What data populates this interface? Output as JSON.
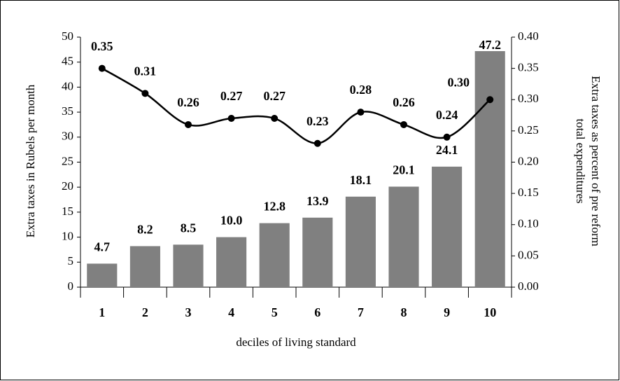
{
  "chart_data": {
    "type": "bar_line",
    "categories": [
      "1",
      "2",
      "3",
      "4",
      "5",
      "6",
      "7",
      "8",
      "9",
      "10"
    ],
    "series": [
      {
        "type": "bar",
        "color": "#808080",
        "values": [
          4.7,
          8.2,
          8.5,
          10.0,
          12.8,
          13.9,
          18.1,
          20.1,
          24.1,
          47.2
        ],
        "value_labels": [
          "4.7",
          "8.2",
          "8.5",
          "10.0",
          "12.8",
          "13.9",
          "18.1",
          "20.1",
          "24.1",
          "47.2"
        ]
      },
      {
        "type": "line",
        "axis": "y2",
        "color": "#000000",
        "values": [
          0.35,
          0.31,
          0.26,
          0.27,
          0.27,
          0.23,
          0.28,
          0.26,
          0.24,
          0.3
        ],
        "value_labels": [
          "0.35",
          "0.31",
          "0.26",
          "0.27",
          "0.27",
          "0.23",
          "0.28",
          "0.26",
          "0.24",
          "0.30"
        ]
      }
    ],
    "xlabel": "deciles of living standard",
    "ylabel": "Extra taxes in Rubels per month",
    "y2label": [
      "Extra taxes as percent of pre reform",
      "total expenditures"
    ],
    "ylim": [
      0,
      50
    ],
    "yticks": [
      0,
      5,
      10,
      15,
      20,
      25,
      30,
      35,
      40,
      45,
      50
    ],
    "y2lim": [
      0,
      0.4
    ],
    "y2ticks": [
      {
        "value": 0,
        "label": "0.00"
      },
      {
        "value": 0.05,
        "label": "0.05"
      },
      {
        "value": 0.1,
        "label": "0.10"
      },
      {
        "value": 0.15,
        "label": "0.15"
      },
      {
        "value": 0.2,
        "label": "0.20"
      },
      {
        "value": 0.25,
        "label": "0.25"
      },
      {
        "value": 0.3,
        "label": "0.30"
      },
      {
        "value": 0.35,
        "label": "0.35"
      },
      {
        "value": 0.4,
        "label": "0.40"
      }
    ]
  }
}
